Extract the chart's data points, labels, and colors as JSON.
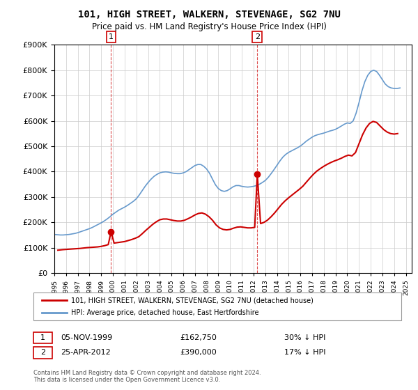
{
  "title": "101, HIGH STREET, WALKERN, STEVENAGE, SG2 7NU",
  "subtitle": "Price paid vs. HM Land Registry's House Price Index (HPI)",
  "ytick_values": [
    0,
    100000,
    200000,
    300000,
    400000,
    500000,
    600000,
    700000,
    800000,
    900000
  ],
  "ylim": [
    0,
    900000
  ],
  "xlim_start": 1995.0,
  "xlim_end": 2025.5,
  "legend_line1": "101, HIGH STREET, WALKERN, STEVENAGE, SG2 7NU (detached house)",
  "legend_line2": "HPI: Average price, detached house, East Hertfordshire",
  "marker1_x": 1999.84,
  "marker1_y": 162750,
  "marker1_label": "1",
  "marker1_date": "05-NOV-1999",
  "marker1_price": "£162,750",
  "marker1_hpi": "30% ↓ HPI",
  "marker2_x": 2012.32,
  "marker2_y": 390000,
  "marker2_label": "2",
  "marker2_date": "25-APR-2012",
  "marker2_price": "£390,000",
  "marker2_hpi": "17% ↓ HPI",
  "line_color_red": "#cc0000",
  "line_color_blue": "#6699cc",
  "background_color": "#ffffff",
  "footer_text": "Contains HM Land Registry data © Crown copyright and database right 2024.\nThis data is licensed under the Open Government Licence v3.0.",
  "hpi_data_x": [
    1995.0,
    1995.25,
    1995.5,
    1995.75,
    1996.0,
    1996.25,
    1996.5,
    1996.75,
    1997.0,
    1997.25,
    1997.5,
    1997.75,
    1998.0,
    1998.25,
    1998.5,
    1998.75,
    1999.0,
    1999.25,
    1999.5,
    1999.75,
    2000.0,
    2000.25,
    2000.5,
    2000.75,
    2001.0,
    2001.25,
    2001.5,
    2001.75,
    2002.0,
    2002.25,
    2002.5,
    2002.75,
    2003.0,
    2003.25,
    2003.5,
    2003.75,
    2004.0,
    2004.25,
    2004.5,
    2004.75,
    2005.0,
    2005.25,
    2005.5,
    2005.75,
    2006.0,
    2006.25,
    2006.5,
    2006.75,
    2007.0,
    2007.25,
    2007.5,
    2007.75,
    2008.0,
    2008.25,
    2008.5,
    2008.75,
    2009.0,
    2009.25,
    2009.5,
    2009.75,
    2010.0,
    2010.25,
    2010.5,
    2010.75,
    2011.0,
    2011.25,
    2011.5,
    2011.75,
    2012.0,
    2012.25,
    2012.5,
    2012.75,
    2013.0,
    2013.25,
    2013.5,
    2013.75,
    2014.0,
    2014.25,
    2014.5,
    2014.75,
    2015.0,
    2015.25,
    2015.5,
    2015.75,
    2016.0,
    2016.25,
    2016.5,
    2016.75,
    2017.0,
    2017.25,
    2017.5,
    2017.75,
    2018.0,
    2018.25,
    2018.5,
    2018.75,
    2019.0,
    2019.25,
    2019.5,
    2019.75,
    2020.0,
    2020.25,
    2020.5,
    2020.75,
    2021.0,
    2021.25,
    2021.5,
    2021.75,
    2022.0,
    2022.25,
    2022.5,
    2022.75,
    2023.0,
    2023.25,
    2023.5,
    2023.75,
    2024.0,
    2024.25,
    2024.5
  ],
  "hpi_data_y": [
    152000,
    151000,
    150000,
    150000,
    151000,
    152000,
    154000,
    156000,
    159000,
    163000,
    167000,
    171000,
    175000,
    180000,
    186000,
    192000,
    198000,
    205000,
    213000,
    222000,
    232000,
    240000,
    248000,
    254000,
    260000,
    267000,
    275000,
    283000,
    293000,
    308000,
    325000,
    342000,
    357000,
    370000,
    381000,
    389000,
    395000,
    398000,
    399000,
    398000,
    395000,
    393000,
    392000,
    392000,
    395000,
    400000,
    408000,
    416000,
    424000,
    428000,
    428000,
    421000,
    410000,
    393000,
    370000,
    348000,
    333000,
    325000,
    322000,
    325000,
    332000,
    340000,
    345000,
    345000,
    342000,
    340000,
    339000,
    340000,
    342000,
    345000,
    350000,
    357000,
    365000,
    377000,
    392000,
    408000,
    425000,
    442000,
    457000,
    468000,
    476000,
    482000,
    488000,
    494000,
    501000,
    510000,
    520000,
    528000,
    536000,
    542000,
    546000,
    549000,
    552000,
    556000,
    560000,
    563000,
    567000,
    573000,
    580000,
    587000,
    592000,
    590000,
    600000,
    630000,
    672000,
    718000,
    755000,
    780000,
    795000,
    800000,
    795000,
    780000,
    762000,
    745000,
    735000,
    730000,
    728000,
    728000,
    730000
  ],
  "price_data_x": [
    1995.3,
    1995.5,
    1995.7,
    1996.0,
    1996.3,
    1996.6,
    1996.9,
    1997.2,
    1997.5,
    1997.8,
    1998.1,
    1998.4,
    1998.7,
    1999.0,
    1999.3,
    1999.6,
    1999.84,
    2000.1,
    2000.4,
    2000.7,
    2001.0,
    2001.3,
    2001.6,
    2001.9,
    2002.2,
    2002.5,
    2002.8,
    2003.1,
    2003.4,
    2003.7,
    2004.0,
    2004.3,
    2004.6,
    2004.9,
    2005.2,
    2005.5,
    2005.8,
    2006.1,
    2006.4,
    2006.7,
    2007.0,
    2007.3,
    2007.6,
    2007.9,
    2008.2,
    2008.5,
    2008.8,
    2009.1,
    2009.4,
    2009.7,
    2010.0,
    2010.3,
    2010.6,
    2010.9,
    2011.2,
    2011.5,
    2011.8,
    2012.1,
    2012.32,
    2012.6,
    2012.9,
    2013.2,
    2013.5,
    2013.8,
    2014.1,
    2014.4,
    2014.7,
    2015.0,
    2015.3,
    2015.6,
    2015.9,
    2016.2,
    2016.5,
    2016.8,
    2017.1,
    2017.4,
    2017.7,
    2018.0,
    2018.3,
    2018.6,
    2018.9,
    2019.2,
    2019.5,
    2019.8,
    2020.1,
    2020.4,
    2020.7,
    2021.0,
    2021.3,
    2021.6,
    2021.9,
    2022.2,
    2022.5,
    2022.8,
    2023.1,
    2023.4,
    2023.7,
    2024.0,
    2024.3
  ],
  "price_data_y": [
    90000,
    91000,
    92000,
    93000,
    94000,
    95000,
    96000,
    97000,
    98500,
    100000,
    101000,
    102000,
    103000,
    105000,
    108000,
    112000,
    162750,
    118000,
    120000,
    122000,
    124000,
    128000,
    132000,
    137000,
    143000,
    155000,
    168000,
    180000,
    192000,
    202000,
    210000,
    213000,
    213000,
    210000,
    207000,
    205000,
    205000,
    208000,
    214000,
    221000,
    229000,
    235000,
    237000,
    232000,
    222000,
    208000,
    190000,
    178000,
    172000,
    170000,
    172000,
    177000,
    181000,
    182000,
    180000,
    178000,
    178000,
    180000,
    390000,
    195000,
    200000,
    209000,
    222000,
    237000,
    254000,
    271000,
    285000,
    297000,
    308000,
    319000,
    330000,
    342000,
    358000,
    374000,
    389000,
    402000,
    412000,
    421000,
    429000,
    436000,
    442000,
    447000,
    453000,
    460000,
    465000,
    462000,
    475000,
    510000,
    545000,
    572000,
    590000,
    598000,
    594000,
    580000,
    566000,
    556000,
    550000,
    548000,
    550000
  ]
}
